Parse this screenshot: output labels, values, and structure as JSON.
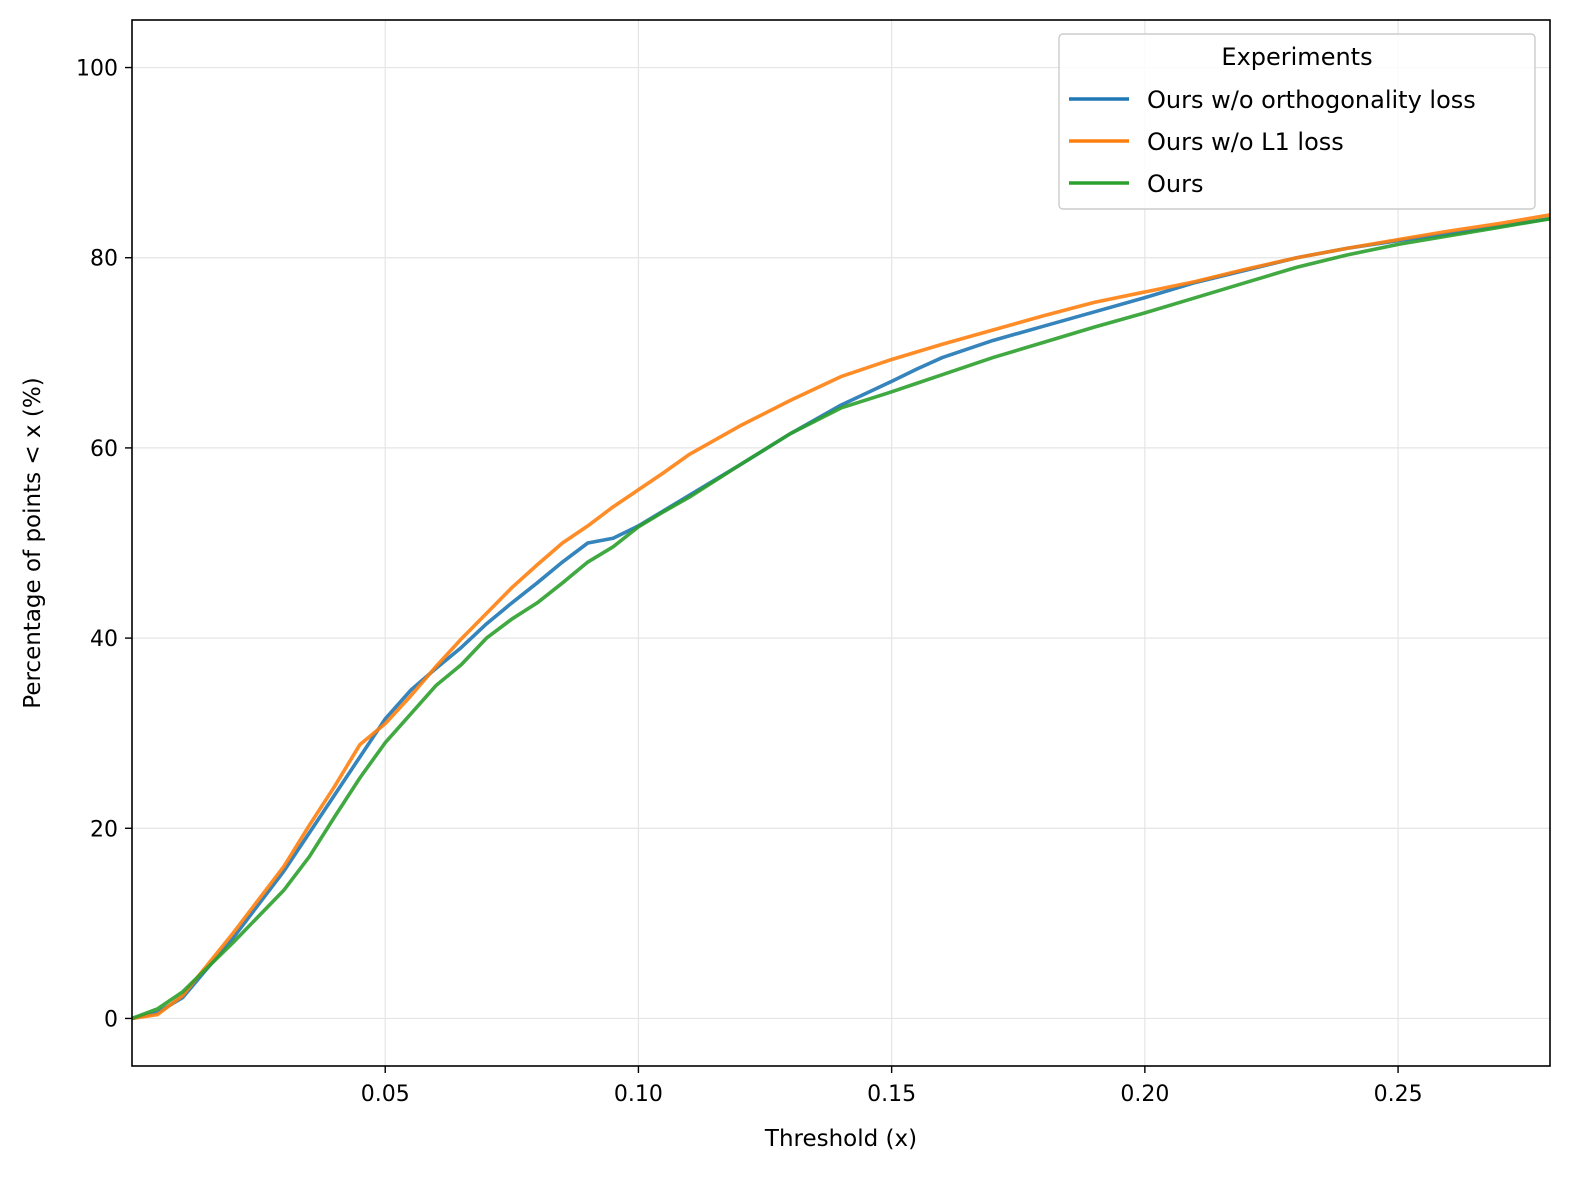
{
  "chart_data": {
    "type": "line",
    "title": "",
    "xlabel": "Threshold (x)",
    "ylabel": "Percentage of points < x (%)",
    "xlim": [
      0.0,
      0.28
    ],
    "ylim": [
      -5,
      105
    ],
    "xticks": [
      0.05,
      0.1,
      0.15,
      0.2,
      0.25
    ],
    "xtick_labels": [
      "0.05",
      "0.10",
      "0.15",
      "0.20",
      "0.25"
    ],
    "yticks": [
      0,
      20,
      40,
      60,
      80,
      100
    ],
    "ytick_labels": [
      "0",
      "20",
      "40",
      "60",
      "80",
      "100"
    ],
    "grid": true,
    "legend": {
      "title": "Experiments",
      "placement": "top-right"
    },
    "x": [
      0.0,
      0.005,
      0.01,
      0.02,
      0.03,
      0.035,
      0.04,
      0.045,
      0.05,
      0.055,
      0.06,
      0.065,
      0.07,
      0.075,
      0.08,
      0.085,
      0.09,
      0.095,
      0.1,
      0.105,
      0.11,
      0.12,
      0.13,
      0.14,
      0.15,
      0.155,
      0.16,
      0.17,
      0.18,
      0.19,
      0.2,
      0.21,
      0.22,
      0.23,
      0.24,
      0.25,
      0.26,
      0.27,
      0.28
    ],
    "series": [
      {
        "name": "Ours w/o orthogonality loss",
        "color": "#1f77b4",
        "values": [
          0.0,
          0.6,
          2.2,
          8.5,
          15.5,
          19.5,
          23.5,
          27.5,
          31.5,
          34.5,
          36.8,
          39.0,
          41.5,
          43.7,
          45.8,
          48.0,
          50.0,
          50.5,
          51.8,
          53.4,
          55.0,
          58.2,
          61.5,
          64.5,
          67.0,
          68.3,
          69.5,
          71.3,
          72.8,
          74.3,
          75.8,
          77.4,
          78.7,
          80.0,
          81.0,
          81.8,
          82.5,
          83.3,
          84.1
        ]
      },
      {
        "name": "Ours w/o L1 loss",
        "color": "#ff7f0e",
        "values": [
          0.0,
          0.4,
          2.4,
          9.0,
          16.0,
          20.3,
          24.4,
          28.8,
          31.0,
          33.9,
          37.0,
          39.9,
          42.6,
          45.3,
          47.7,
          50.0,
          51.8,
          53.8,
          55.6,
          57.4,
          59.3,
          62.3,
          65.0,
          67.5,
          69.3,
          70.1,
          70.9,
          72.4,
          73.9,
          75.3,
          76.4,
          77.5,
          78.8,
          80.0,
          81.0,
          81.9,
          82.8,
          83.6,
          84.5
        ]
      },
      {
        "name": "Ours",
        "color": "#2ca02c",
        "values": [
          0.0,
          1.0,
          2.8,
          8.0,
          13.5,
          17.0,
          21.2,
          25.3,
          29.0,
          32.0,
          35.0,
          37.2,
          40.0,
          42.0,
          43.7,
          45.8,
          48.0,
          49.6,
          51.7,
          53.3,
          54.8,
          58.2,
          61.5,
          64.2,
          65.9,
          66.8,
          67.7,
          69.5,
          71.1,
          72.7,
          74.2,
          75.8,
          77.4,
          79.0,
          80.3,
          81.4,
          82.3,
          83.2,
          84.1
        ]
      }
    ]
  }
}
